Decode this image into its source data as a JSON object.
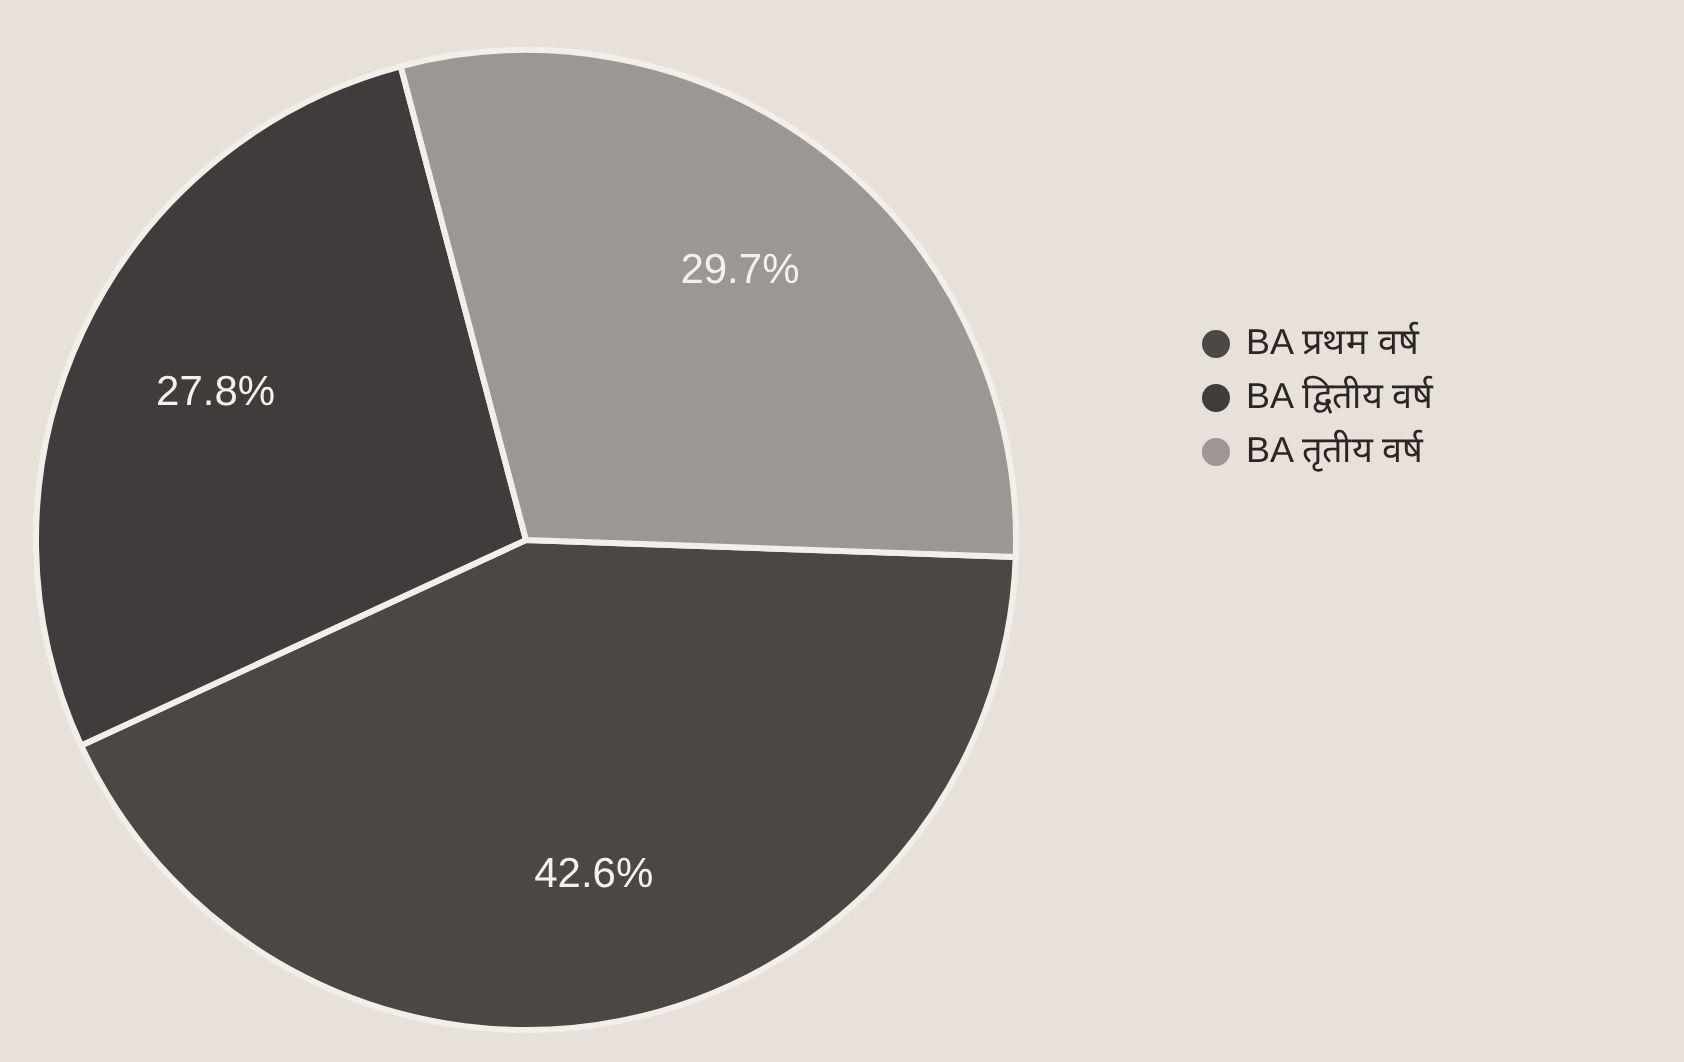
{
  "chart_data": {
    "type": "pie",
    "categories": [
      "BA प्रथम वर्ष",
      "BA द्वितीय वर्ष",
      "BA तृतीय वर्ष"
    ],
    "values": [
      42.6,
      27.8,
      29.7
    ],
    "colors": [
      "#4b4745",
      "#403c3b",
      "#9c9794"
    ],
    "value_labels": [
      "42.6%",
      "27.8%",
      "29.7%"
    ],
    "legend": "right"
  }
}
